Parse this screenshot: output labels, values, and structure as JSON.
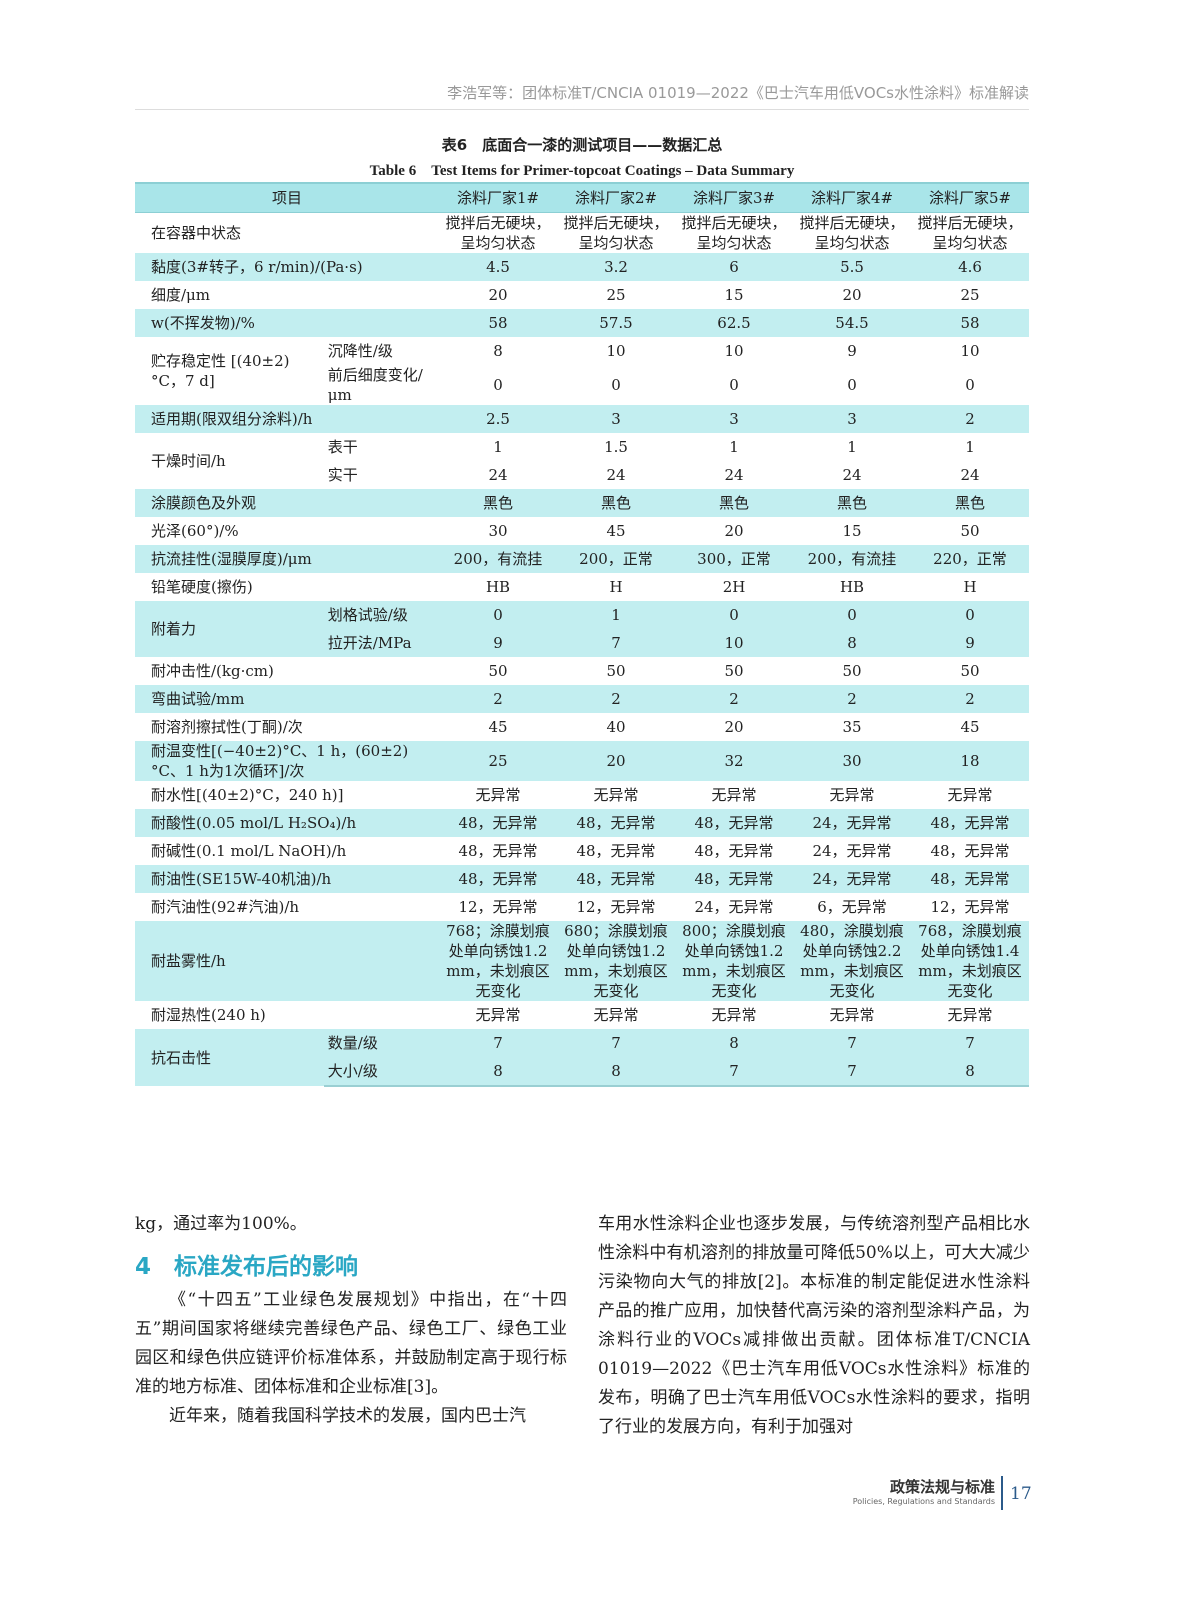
{
  "running_head": "李浩军等：团体标准T/CNCIA 01019—2022《巴士汽车用低VOCs水性涂料》标准解读",
  "table": {
    "caption_cn": "表6　底面合一漆的测试项目——数据汇总",
    "caption_en": "Table 6　Test Items for Primer-topcoat Coatings – Data Summary",
    "header": [
      "项目",
      "涂料厂家1#",
      "涂料厂家2#",
      "涂料厂家3#",
      "涂料厂家4#",
      "涂料厂家5#"
    ],
    "highlight_color": "#c2eef0",
    "rows": [
      {
        "label": "在容器中状态",
        "shade": false,
        "sub": [
          {
            "name": "",
            "values": [
              "搅拌后无硬块，呈均匀状态",
              "搅拌后无硬块，呈均匀状态",
              "搅拌后无硬块，呈均匀状态",
              "搅拌后无硬块，呈均匀状态",
              "搅拌后无硬块，呈均匀状态"
            ]
          }
        ]
      },
      {
        "label": "黏度(3#转子，6 r/min)/(Pa·s)",
        "shade": true,
        "sub": [
          {
            "name": "",
            "values": [
              "4.5",
              "3.2",
              "6",
              "5.5",
              "4.6"
            ]
          }
        ]
      },
      {
        "label": "细度/μm",
        "shade": false,
        "sub": [
          {
            "name": "",
            "values": [
              "20",
              "25",
              "15",
              "20",
              "25"
            ]
          }
        ]
      },
      {
        "label": "w(不挥发物)/%",
        "shade": true,
        "sub": [
          {
            "name": "",
            "values": [
              "58",
              "57.5",
              "62.5",
              "54.5",
              "58"
            ]
          }
        ]
      },
      {
        "label": "贮存稳定性 [(40±2)°C，7 d]",
        "shade": false,
        "sub": [
          {
            "name": "沉降性/级",
            "values": [
              "8",
              "10",
              "10",
              "9",
              "10"
            ]
          },
          {
            "name": "前后细度变化/μm",
            "values": [
              "0",
              "0",
              "0",
              "0",
              "0"
            ]
          }
        ]
      },
      {
        "label": "适用期(限双组分涂料)/h",
        "shade": true,
        "sub": [
          {
            "name": "",
            "values": [
              "2.5",
              "3",
              "3",
              "3",
              "2"
            ]
          }
        ]
      },
      {
        "label": "干燥时间/h",
        "shade": false,
        "sub": [
          {
            "name": "表干",
            "values": [
              "1",
              "1.5",
              "1",
              "1",
              "1"
            ]
          },
          {
            "name": "实干",
            "values": [
              "24",
              "24",
              "24",
              "24",
              "24"
            ]
          }
        ]
      },
      {
        "label": "涂膜颜色及外观",
        "shade": true,
        "sub": [
          {
            "name": "",
            "values": [
              "黑色",
              "黑色",
              "黑色",
              "黑色",
              "黑色"
            ]
          }
        ]
      },
      {
        "label": "光泽(60°)/%",
        "shade": false,
        "sub": [
          {
            "name": "",
            "values": [
              "30",
              "45",
              "20",
              "15",
              "50"
            ]
          }
        ]
      },
      {
        "label": "抗流挂性(湿膜厚度)/μm",
        "shade": true,
        "sub": [
          {
            "name": "",
            "values": [
              "200，有流挂",
              "200，正常",
              "300，正常",
              "200，有流挂",
              "220，正常"
            ]
          }
        ]
      },
      {
        "label": "铅笔硬度(擦伤)",
        "shade": false,
        "sub": [
          {
            "name": "",
            "values": [
              "HB",
              "H",
              "2H",
              "HB",
              "H"
            ]
          }
        ]
      },
      {
        "label": "附着力",
        "shade": true,
        "sub": [
          {
            "name": "划格试验/级",
            "values": [
              "0",
              "1",
              "0",
              "0",
              "0"
            ]
          },
          {
            "name": "拉开法/MPa",
            "values": [
              "9",
              "7",
              "10",
              "8",
              "9"
            ]
          }
        ]
      },
      {
        "label": "耐冲击性/(kg·cm)",
        "shade": false,
        "sub": [
          {
            "name": "",
            "values": [
              "50",
              "50",
              "50",
              "50",
              "50"
            ]
          }
        ]
      },
      {
        "label": "弯曲试验/mm",
        "shade": true,
        "sub": [
          {
            "name": "",
            "values": [
              "2",
              "2",
              "2",
              "2",
              "2"
            ]
          }
        ]
      },
      {
        "label": "耐溶剂擦拭性(丁酮)/次",
        "shade": false,
        "sub": [
          {
            "name": "",
            "values": [
              "45",
              "40",
              "20",
              "35",
              "45"
            ]
          }
        ]
      },
      {
        "label": "耐温变性[(−40±2)°C、1 h，(60±2)°C、1 h为1次循环]/次",
        "shade": true,
        "sub": [
          {
            "name": "",
            "values": [
              "25",
              "20",
              "32",
              "30",
              "18"
            ]
          }
        ]
      },
      {
        "label": "耐水性[(40±2)°C，240 h)]",
        "shade": false,
        "sub": [
          {
            "name": "",
            "values": [
              "无异常",
              "无异常",
              "无异常",
              "无异常",
              "无异常"
            ]
          }
        ]
      },
      {
        "label": "耐酸性(0.05 mol/L H₂SO₄)/h",
        "shade": true,
        "sub": [
          {
            "name": "",
            "values": [
              "48，无异常",
              "48，无异常",
              "48，无异常",
              "24，无异常",
              "48，无异常"
            ]
          }
        ]
      },
      {
        "label": "耐碱性(0.1 mol/L NaOH)/h",
        "shade": false,
        "sub": [
          {
            "name": "",
            "values": [
              "48，无异常",
              "48，无异常",
              "48，无异常",
              "24，无异常",
              "48，无异常"
            ]
          }
        ]
      },
      {
        "label": "耐油性(SE15W-40机油)/h",
        "shade": true,
        "sub": [
          {
            "name": "",
            "values": [
              "48，无异常",
              "48，无异常",
              "48，无异常",
              "24，无异常",
              "48，无异常"
            ]
          }
        ]
      },
      {
        "label": "耐汽油性(92#汽油)/h",
        "shade": false,
        "sub": [
          {
            "name": "",
            "values": [
              "12，无异常",
              "12，无异常",
              "24，无异常",
              "6，无异常",
              "12，无异常"
            ]
          }
        ]
      },
      {
        "label": "耐盐雾性/h",
        "shade": true,
        "sub": [
          {
            "name": "",
            "values": [
              "768；涂膜划痕处单向锈蚀1.2 mm，未划痕区无变化",
              "680；涂膜划痕处单向锈蚀1.2 mm，未划痕区无变化",
              "800；涂膜划痕处单向锈蚀1.2 mm，未划痕区无变化",
              "480，涂膜划痕处单向锈蚀2.2 mm，未划痕区无变化",
              "768，涂膜划痕处单向锈蚀1.4 mm，未划痕区无变化"
            ]
          }
        ]
      },
      {
        "label": "耐湿热性(240 h)",
        "shade": false,
        "sub": [
          {
            "name": "",
            "values": [
              "无异常",
              "无异常",
              "无异常",
              "无异常",
              "无异常"
            ]
          }
        ]
      },
      {
        "label": "抗石击性",
        "shade": true,
        "sub": [
          {
            "name": "数量/级",
            "values": [
              "7",
              "7",
              "8",
              "7",
              "7"
            ]
          },
          {
            "name": "大小/级",
            "values": [
              "8",
              "8",
              "7",
              "7",
              "8"
            ]
          }
        ]
      }
    ]
  },
  "body": {
    "left_p1": "kg，通过率为100%。",
    "heading": "4　标准发布后的影响",
    "left_p2": "《“十四五”工业绿色发展规划》中指出，在“十四五”期间国家将继续完善绿色产品、绿色工厂、绿色工业园区和绿色供应链评价标准体系，并鼓励制定高于现行标准的地方标准、团体标准和企业标准[3]。",
    "left_p3": "近年来，随着我国科学技术的发展，国内巴士汽",
    "right_p1": "车用水性涂料企业也逐步发展，与传统溶剂型产品相比水性涂料中有机溶剂的排放量可降低50%以上，可大大减少污染物向大气的排放[2]。本标准的制定能促进水性涂料产品的推广应用，加快替代高污染的溶剂型涂料产品，为涂料行业的VOCs减排做出贡献。团体标准T/CNCIA 01019—2022《巴士汽车用低VOCs水性涂料》标准的发布，明确了巴士汽车用低VOCs水性涂料的要求，指明了行业的发展方向，有利于加强对"
  },
  "footer": {
    "section_cn": "政策法规与标准",
    "section_en": "Policies, Regulations and Standards",
    "page_number": "17",
    "accent": "#2b5a8a"
  }
}
